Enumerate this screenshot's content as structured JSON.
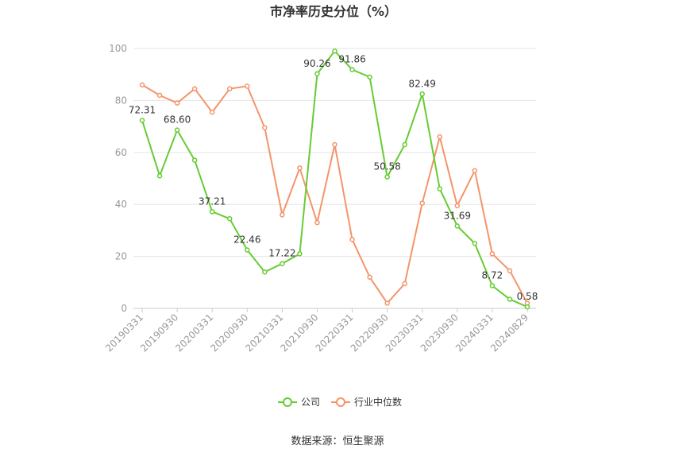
{
  "chart_data": {
    "type": "line",
    "title": "市净率历史分位（%）",
    "ylim": [
      0,
      100
    ],
    "yticks": [
      "0",
      "20",
      "40",
      "60",
      "80",
      "100"
    ],
    "x": [
      "20190331",
      "20190630",
      "20190930",
      "20191231",
      "20200331",
      "20200630",
      "20200930",
      "20201231",
      "20210331",
      "20210630",
      "20210930",
      "20211231",
      "20220331",
      "20220630",
      "20220930",
      "20221231",
      "20230331",
      "20230630",
      "20230930",
      "20231231",
      "20240331",
      "20240630",
      "20240829"
    ],
    "xtick_labels": [
      "20190331",
      "20190930",
      "20200331",
      "20200930",
      "20210331",
      "20210930",
      "20220331",
      "20220930",
      "20230331",
      "20230930",
      "20240331",
      "20240829"
    ],
    "xtick_positions": [
      0,
      2,
      4,
      6,
      8,
      10,
      12,
      14,
      16,
      18,
      20,
      22
    ],
    "grid": true,
    "legend_position": "bottom",
    "series": [
      {
        "name": "公司",
        "color": "#66cc33",
        "values": [
          72.31,
          51,
          68.6,
          57,
          37.21,
          34.5,
          22.46,
          14,
          17.22,
          21,
          90.26,
          99,
          91.86,
          89,
          50.58,
          63,
          82.49,
          46,
          31.69,
          25,
          8.72,
          3.5,
          0.58
        ]
      },
      {
        "name": "行业中位数",
        "color": "#f4946b",
        "values": [
          86,
          82,
          79,
          84.5,
          75.5,
          84.5,
          85.5,
          69.5,
          36,
          54,
          33,
          63,
          26.5,
          12,
          2,
          9.5,
          40.5,
          66,
          39.5,
          53,
          21,
          14.5,
          2
        ]
      }
    ],
    "data_labels": [
      {
        "index": 0,
        "text": "72.31"
      },
      {
        "index": 2,
        "text": "68.60"
      },
      {
        "index": 4,
        "text": "37.21"
      },
      {
        "index": 6,
        "text": "22.46"
      },
      {
        "index": 8,
        "text": "17.22"
      },
      {
        "index": 10,
        "text": "90.26"
      },
      {
        "index": 12,
        "text": "91.86"
      },
      {
        "index": 14,
        "text": "50.58"
      },
      {
        "index": 16,
        "text": "82.49"
      },
      {
        "index": 18,
        "text": "31.69"
      },
      {
        "index": 20,
        "text": "8.72"
      },
      {
        "index": 22,
        "text": "0.58"
      }
    ]
  },
  "source": "数据来源：恒生聚源"
}
